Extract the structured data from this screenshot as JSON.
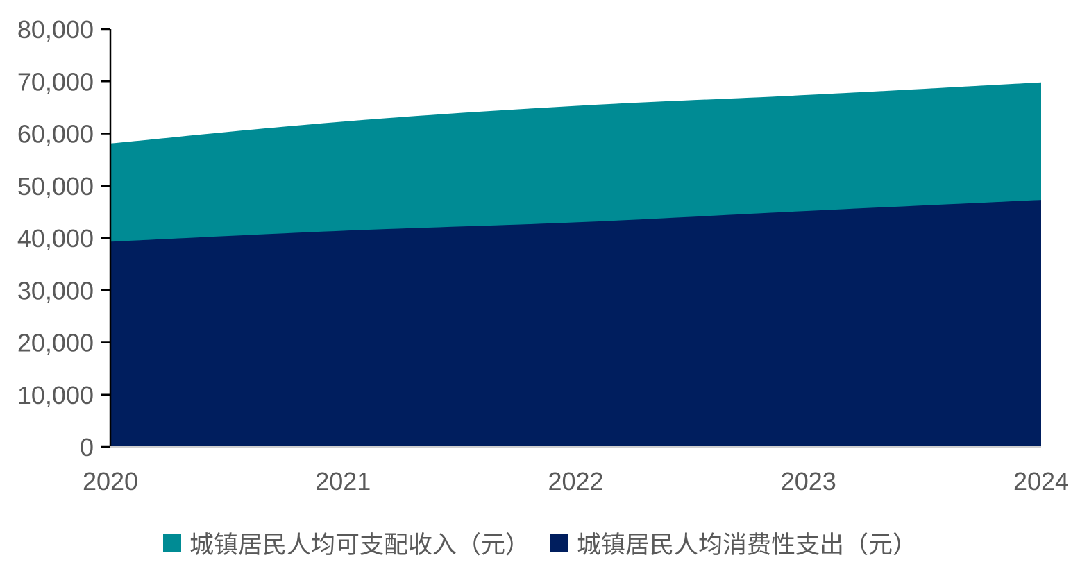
{
  "chart_data": {
    "type": "area",
    "stacked": false,
    "x": [
      "2020",
      "2021",
      "2022",
      "2023",
      "2024"
    ],
    "series": [
      {
        "name": "城镇居民人均可支配收入（元）",
        "values": [
          58100,
          62300,
          65300,
          67400,
          69800
        ],
        "color": "#008b94"
      },
      {
        "name": "城镇居民人均消费性支出（元）",
        "values": [
          39300,
          41400,
          43000,
          45200,
          47300
        ],
        "color": "#001e5e"
      }
    ],
    "ylim": [
      0,
      80000
    ],
    "yticks": [
      0,
      10000,
      20000,
      30000,
      40000,
      50000,
      60000,
      70000,
      80000
    ],
    "ytick_labels": [
      "0",
      "10,000",
      "20,000",
      "30,000",
      "40,000",
      "50,000",
      "60,000",
      "70,000",
      "80,000"
    ],
    "title": "",
    "xlabel": "",
    "ylabel": "",
    "grid": false,
    "legend_position": "bottom",
    "axis_color": "#000000",
    "text_color": "#595959"
  }
}
